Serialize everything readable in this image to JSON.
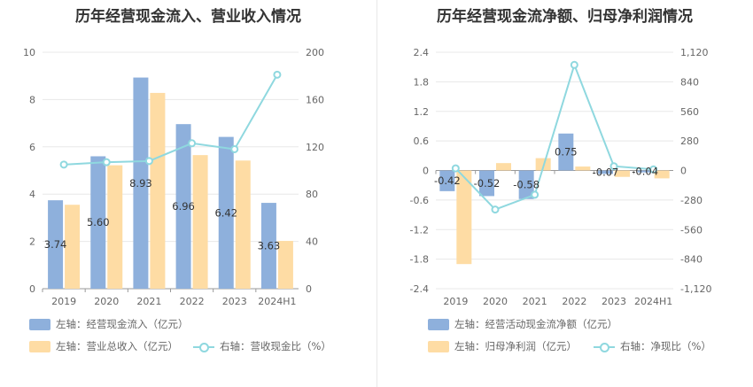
{
  "colors": {
    "bar1": "#8eb0dc",
    "bar2": "#fedca4",
    "line": "#8fd8df",
    "grid": "#e8e8e8",
    "axis": "#666666"
  },
  "chart_data": [
    {
      "type": "bar",
      "title": "历年经营现金流入、营业收入情况",
      "categories": [
        "2019",
        "2020",
        "2021",
        "2022",
        "2023",
        "2024H1"
      ],
      "left_axis": {
        "min": 0,
        "max": 10,
        "ticks": [
          "0",
          "2",
          "4",
          "6",
          "8",
          "10"
        ]
      },
      "right_axis": {
        "min": 0,
        "max": 200,
        "ticks": [
          "0",
          "40",
          "80",
          "120",
          "160",
          "200"
        ]
      },
      "series": [
        {
          "name": "左轴：经营现金流入（亿元）",
          "kind": "bar",
          "axis": "left",
          "values": [
            3.74,
            5.6,
            8.93,
            6.96,
            6.42,
            3.63
          ],
          "labels": [
            "3.74",
            "5.60",
            "8.93",
            "6.96",
            "6.42",
            "3.63"
          ]
        },
        {
          "name": "左轴：营业总收入（亿元）",
          "kind": "bar",
          "axis": "left",
          "values": [
            3.55,
            5.22,
            8.28,
            5.65,
            5.42,
            2.02
          ]
        },
        {
          "name": "右轴：营收现金比（%）",
          "kind": "line",
          "axis": "right",
          "values": [
            105,
            107,
            108,
            123,
            118,
            181
          ]
        }
      ]
    },
    {
      "type": "bar",
      "title": "历年经营现金流净额、归母净利润情况",
      "categories": [
        "2019",
        "2020",
        "2021",
        "2022",
        "2023",
        "2024H1"
      ],
      "left_axis": {
        "min": -2.4,
        "max": 2.4,
        "ticks": [
          "-2.4",
          "-1.8",
          "-1.2",
          "-0.6",
          "0",
          "0.6",
          "1.2",
          "1.8",
          "2.4"
        ]
      },
      "right_axis": {
        "min": -1120,
        "max": 1120,
        "ticks": [
          "-1,120",
          "-840",
          "-560",
          "-280",
          "0",
          "280",
          "560",
          "840",
          "1,120"
        ]
      },
      "series": [
        {
          "name": "左轴：经营活动现金流净额（亿元）",
          "kind": "bar",
          "axis": "left",
          "values": [
            -0.42,
            -0.52,
            -0.58,
            0.75,
            -0.07,
            -0.04
          ],
          "labels": [
            "-0.42",
            "-0.52",
            "-0.58",
            "0.75",
            "-0.07",
            "-0.04"
          ]
        },
        {
          "name": "左轴：归母净利润（亿元）",
          "kind": "bar",
          "axis": "left",
          "values": [
            -1.9,
            0.15,
            0.25,
            0.08,
            -0.13,
            -0.16
          ]
        },
        {
          "name": "右轴：净现比（%）",
          "kind": "line",
          "axis": "right",
          "values": [
            20,
            -370,
            -230,
            1000,
            40,
            10
          ]
        }
      ]
    }
  ]
}
